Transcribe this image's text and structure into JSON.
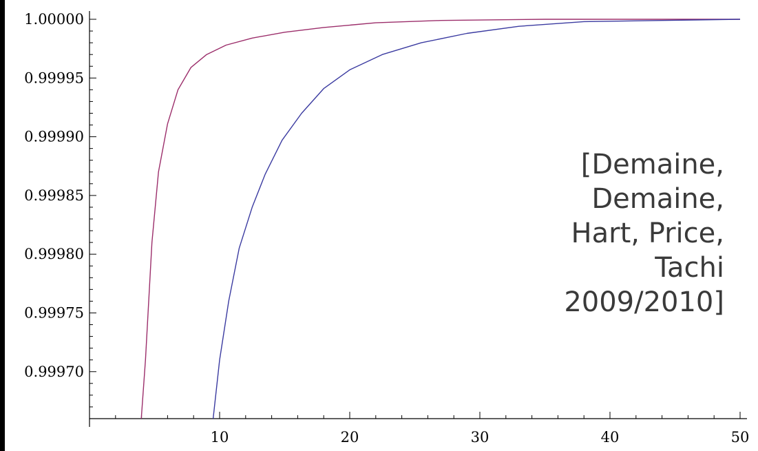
{
  "chart_data": {
    "type": "line",
    "title": "",
    "xlabel": "",
    "ylabel": "",
    "xlim": [
      0,
      50
    ],
    "ylim": [
      0.99966,
      1.0
    ],
    "grid": false,
    "x_ticks": [
      10,
      20,
      30,
      40,
      50
    ],
    "x_tick_labels": [
      "10",
      "20",
      "30",
      "40",
      "50"
    ],
    "y_ticks": [
      0.9997,
      0.99975,
      0.9998,
      0.99985,
      0.9999,
      0.99995,
      1.0
    ],
    "y_tick_labels": [
      "0.99970",
      "0.99975",
      "0.99980",
      "0.99985",
      "0.99990",
      "0.99995",
      "1.00000"
    ],
    "series": [
      {
        "color": "#9b2d6a",
        "x": [
          3.98,
          4.3,
          4.8,
          5.3,
          6,
          6.8,
          7.8,
          9,
          10.5,
          12.5,
          15,
          18,
          22,
          27,
          35,
          50
        ],
        "y": [
          0.99966,
          0.99971,
          0.99981,
          0.99987,
          0.999911,
          0.99994,
          0.999959,
          0.99997,
          0.999978,
          0.999984,
          0.999989,
          0.999993,
          0.999997,
          0.999999,
          1.0,
          1.0
        ]
      },
      {
        "color": "#3a3aa0",
        "x": [
          9.5,
          10,
          10.7,
          11.5,
          12.5,
          13.5,
          14.8,
          16.3,
          18,
          20,
          22.5,
          25.5,
          29,
          33,
          38,
          44,
          50
        ],
        "y": [
          0.99966,
          0.99971,
          0.99976,
          0.999805,
          0.99984,
          0.999868,
          0.999897,
          0.99992,
          0.999941,
          0.999957,
          0.99997,
          0.99998,
          0.999988,
          0.999994,
          0.999998,
          0.999999,
          1.0
        ]
      }
    ],
    "annotation": {
      "lines": [
        "[Demaine,",
        "Demaine,",
        "Hart, Price,",
        "Tachi",
        "2009/2010]"
      ]
    }
  }
}
